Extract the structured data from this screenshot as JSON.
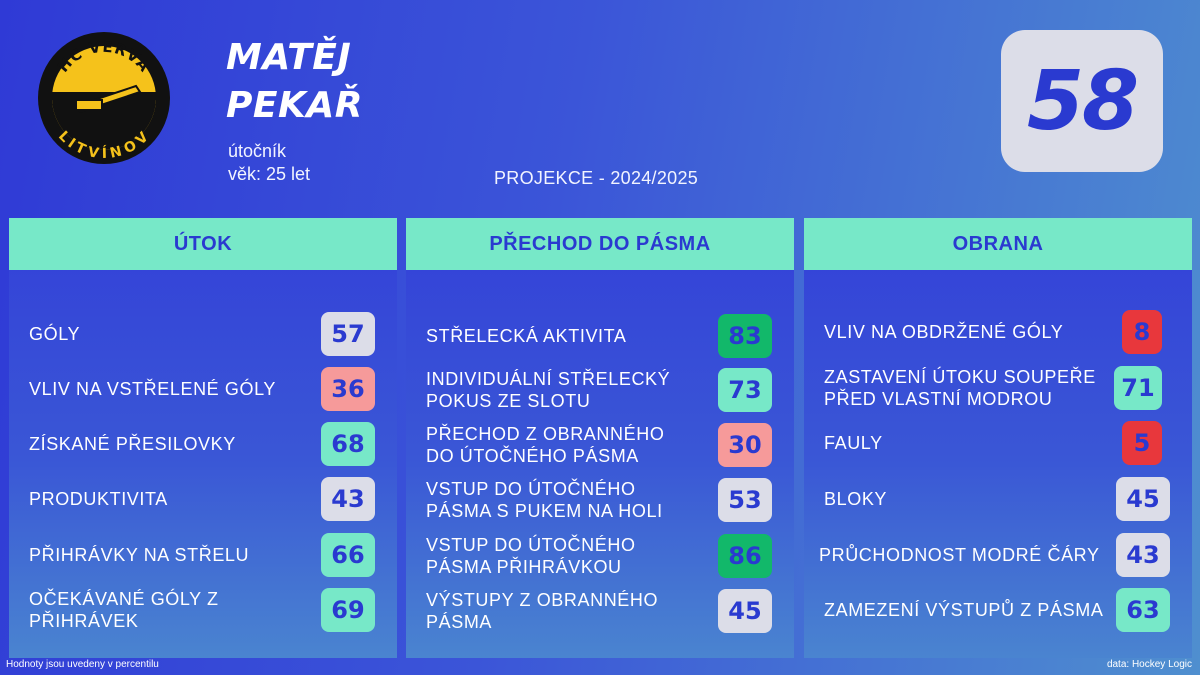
{
  "club": {
    "logo_top_text": "HC VERVA",
    "logo_bottom_text": "LITVÍNOV",
    "colors": {
      "yellow": "#f5c21b",
      "black": "#111111"
    }
  },
  "player": {
    "first_name": "MATĚJ",
    "last_name": "PEKAŘ",
    "position": "útočník",
    "age": "věk: 25 let"
  },
  "projection_label": "PROJEKCE - 2024/2025",
  "overall_rating": "58",
  "panels": [
    {
      "title": "ÚTOK",
      "rows": [
        {
          "label": "GÓLY",
          "value": "57",
          "color": "grey"
        },
        {
          "label": "VLIV NA VSTŘELENÉ GÓLY",
          "value": "36",
          "color": "pink"
        },
        {
          "label": "ZÍSKANÉ PŘESILOVKY",
          "value": "68",
          "color": "teal"
        },
        {
          "label": "PRODUKTIVITA",
          "value": "43",
          "color": "grey"
        },
        {
          "label": "PŘIHRÁVKY NA STŘELU",
          "value": "66",
          "color": "teal"
        },
        {
          "label": "OČEKÁVANÉ GÓLY Z PŘIHRÁVEK",
          "value": "69",
          "color": "teal"
        }
      ]
    },
    {
      "title": "PŘECHOD DO PÁSMA",
      "rows": [
        {
          "label": "STŘELECKÁ AKTIVITA",
          "value": "83",
          "color": "green"
        },
        {
          "label": "INDIVIDUÁLNÍ STŘELECKÝ POKUS ZE SLOTU",
          "value": "73",
          "color": "teal"
        },
        {
          "label": "PŘECHOD Z OBRANNÉHO DO ÚTOČNÉHO PÁSMA",
          "value": "30",
          "color": "pink"
        },
        {
          "label": "VSTUP DO ÚTOČNÉHO PÁSMA S PUKEM NA HOLI",
          "value": "53",
          "color": "grey"
        },
        {
          "label": "VSTUP DO ÚTOČNÉHO PÁSMA PŘIHRÁVKOU",
          "value": "86",
          "color": "green"
        },
        {
          "label": "VÝSTUPY Z OBRANNÉHO PÁSMA",
          "value": "45",
          "color": "grey"
        }
      ]
    },
    {
      "title": "OBRANA",
      "rows": [
        {
          "label": "VLIV NA OBDRŽENÉ GÓLY",
          "value": "8",
          "color": "red"
        },
        {
          "label": "ZASTAVENÍ ÚTOKU SOUPEŘE PŘED VLASTNÍ MODROU",
          "value": "71",
          "color": "teal"
        },
        {
          "label": "FAULY",
          "value": "5",
          "color": "red"
        },
        {
          "label": "BLOKY",
          "value": "45",
          "color": "grey"
        },
        {
          "label": "PRŮCHODNOST MODRÉ ČÁRY",
          "value": "43",
          "color": "grey"
        },
        {
          "label": "ZAMEZENÍ VÝSTUPŮ Z PÁSMA",
          "value": "63",
          "color": "teal"
        }
      ]
    }
  ],
  "footer": {
    "note": "Hodnoty jsou uvedeny v percentilu",
    "source": "data: Hockey Logic"
  }
}
